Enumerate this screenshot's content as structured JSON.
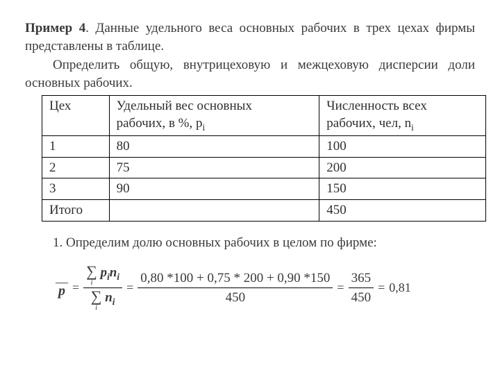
{
  "intro": {
    "title_label": "Пример 4",
    "sentence1_rest": ".  Данные удельного веса основных рабочих в трех цехах фирмы представлены в таблице.",
    "sentence2": "Определить общую, внутрицеховую и межцеховую дисперсии доли основных рабочих."
  },
  "table": {
    "columns": {
      "c1": "Цех",
      "c2a": "Удельный вес основных",
      "c2b": "рабочих, в %,  p",
      "c2sub": "i",
      "c3a": "Численность всех",
      "c3b": "рабочих, чел,  n",
      "c3sub": "i"
    },
    "rows": [
      [
        "1",
        "80",
        "100"
      ],
      [
        "2",
        "75",
        "200"
      ],
      [
        "3",
        "90",
        "150"
      ]
    ],
    "total_label": "Итого",
    "total_value": "450"
  },
  "step1": "1. Определим долю основных рабочих в целом по фирме:",
  "formula": {
    "num_sym": "p",
    "num_sub": "i",
    "num_sym2": "n",
    "num_sub2": "i",
    "den_sym": "n",
    "den_sub": "i",
    "expanded_num": "0,80 *100 + 0,75 * 200 + 0,90 *150",
    "expanded_den": "450",
    "reduced_num": "365",
    "reduced_den": "450",
    "result": "0,81"
  }
}
